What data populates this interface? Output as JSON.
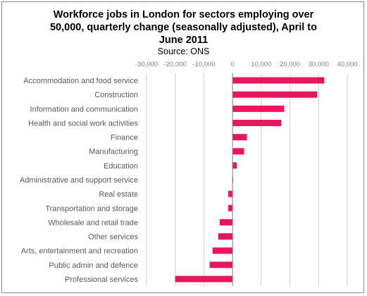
{
  "chart_data": {
    "type": "bar",
    "orientation": "horizontal",
    "title_lines": [
      "Workforce jobs in London for sectors employing over",
      "50,000, quarterly change (seasonally adjusted), April to",
      "June 2011"
    ],
    "subtitle": "Source: ONS",
    "categories": [
      "Accommodation and food service",
      "Construction",
      "Information and communication",
      "Health and social work activities",
      "Finance",
      "Manufacturing",
      "Education",
      "Administrative and support service",
      "Real estate",
      "Transportation and storage",
      "Wholesale and retail trade",
      "Other services",
      "Arts, entertainment and recreation",
      "Public admin and defence",
      "Professional services"
    ],
    "values": [
      32000,
      29500,
      18000,
      17000,
      5000,
      4000,
      1500,
      200,
      -1500,
      -1500,
      -4500,
      -5000,
      -7000,
      -8000,
      -20000
    ],
    "xlim": [
      -30000,
      40000
    ],
    "xticks": [
      -30000,
      -20000,
      -10000,
      0,
      10000,
      20000,
      30000,
      40000
    ],
    "xtick_labels": [
      "-30,000",
      "-20,000",
      "-10,000",
      "0",
      "10,000",
      "20,000",
      "30,000",
      "40,000"
    ],
    "grid": "vertical",
    "legend": "none",
    "bar_color": "#e8175d",
    "axis_color": "#7f7f7f",
    "grid_color": "#d0d0d0"
  }
}
